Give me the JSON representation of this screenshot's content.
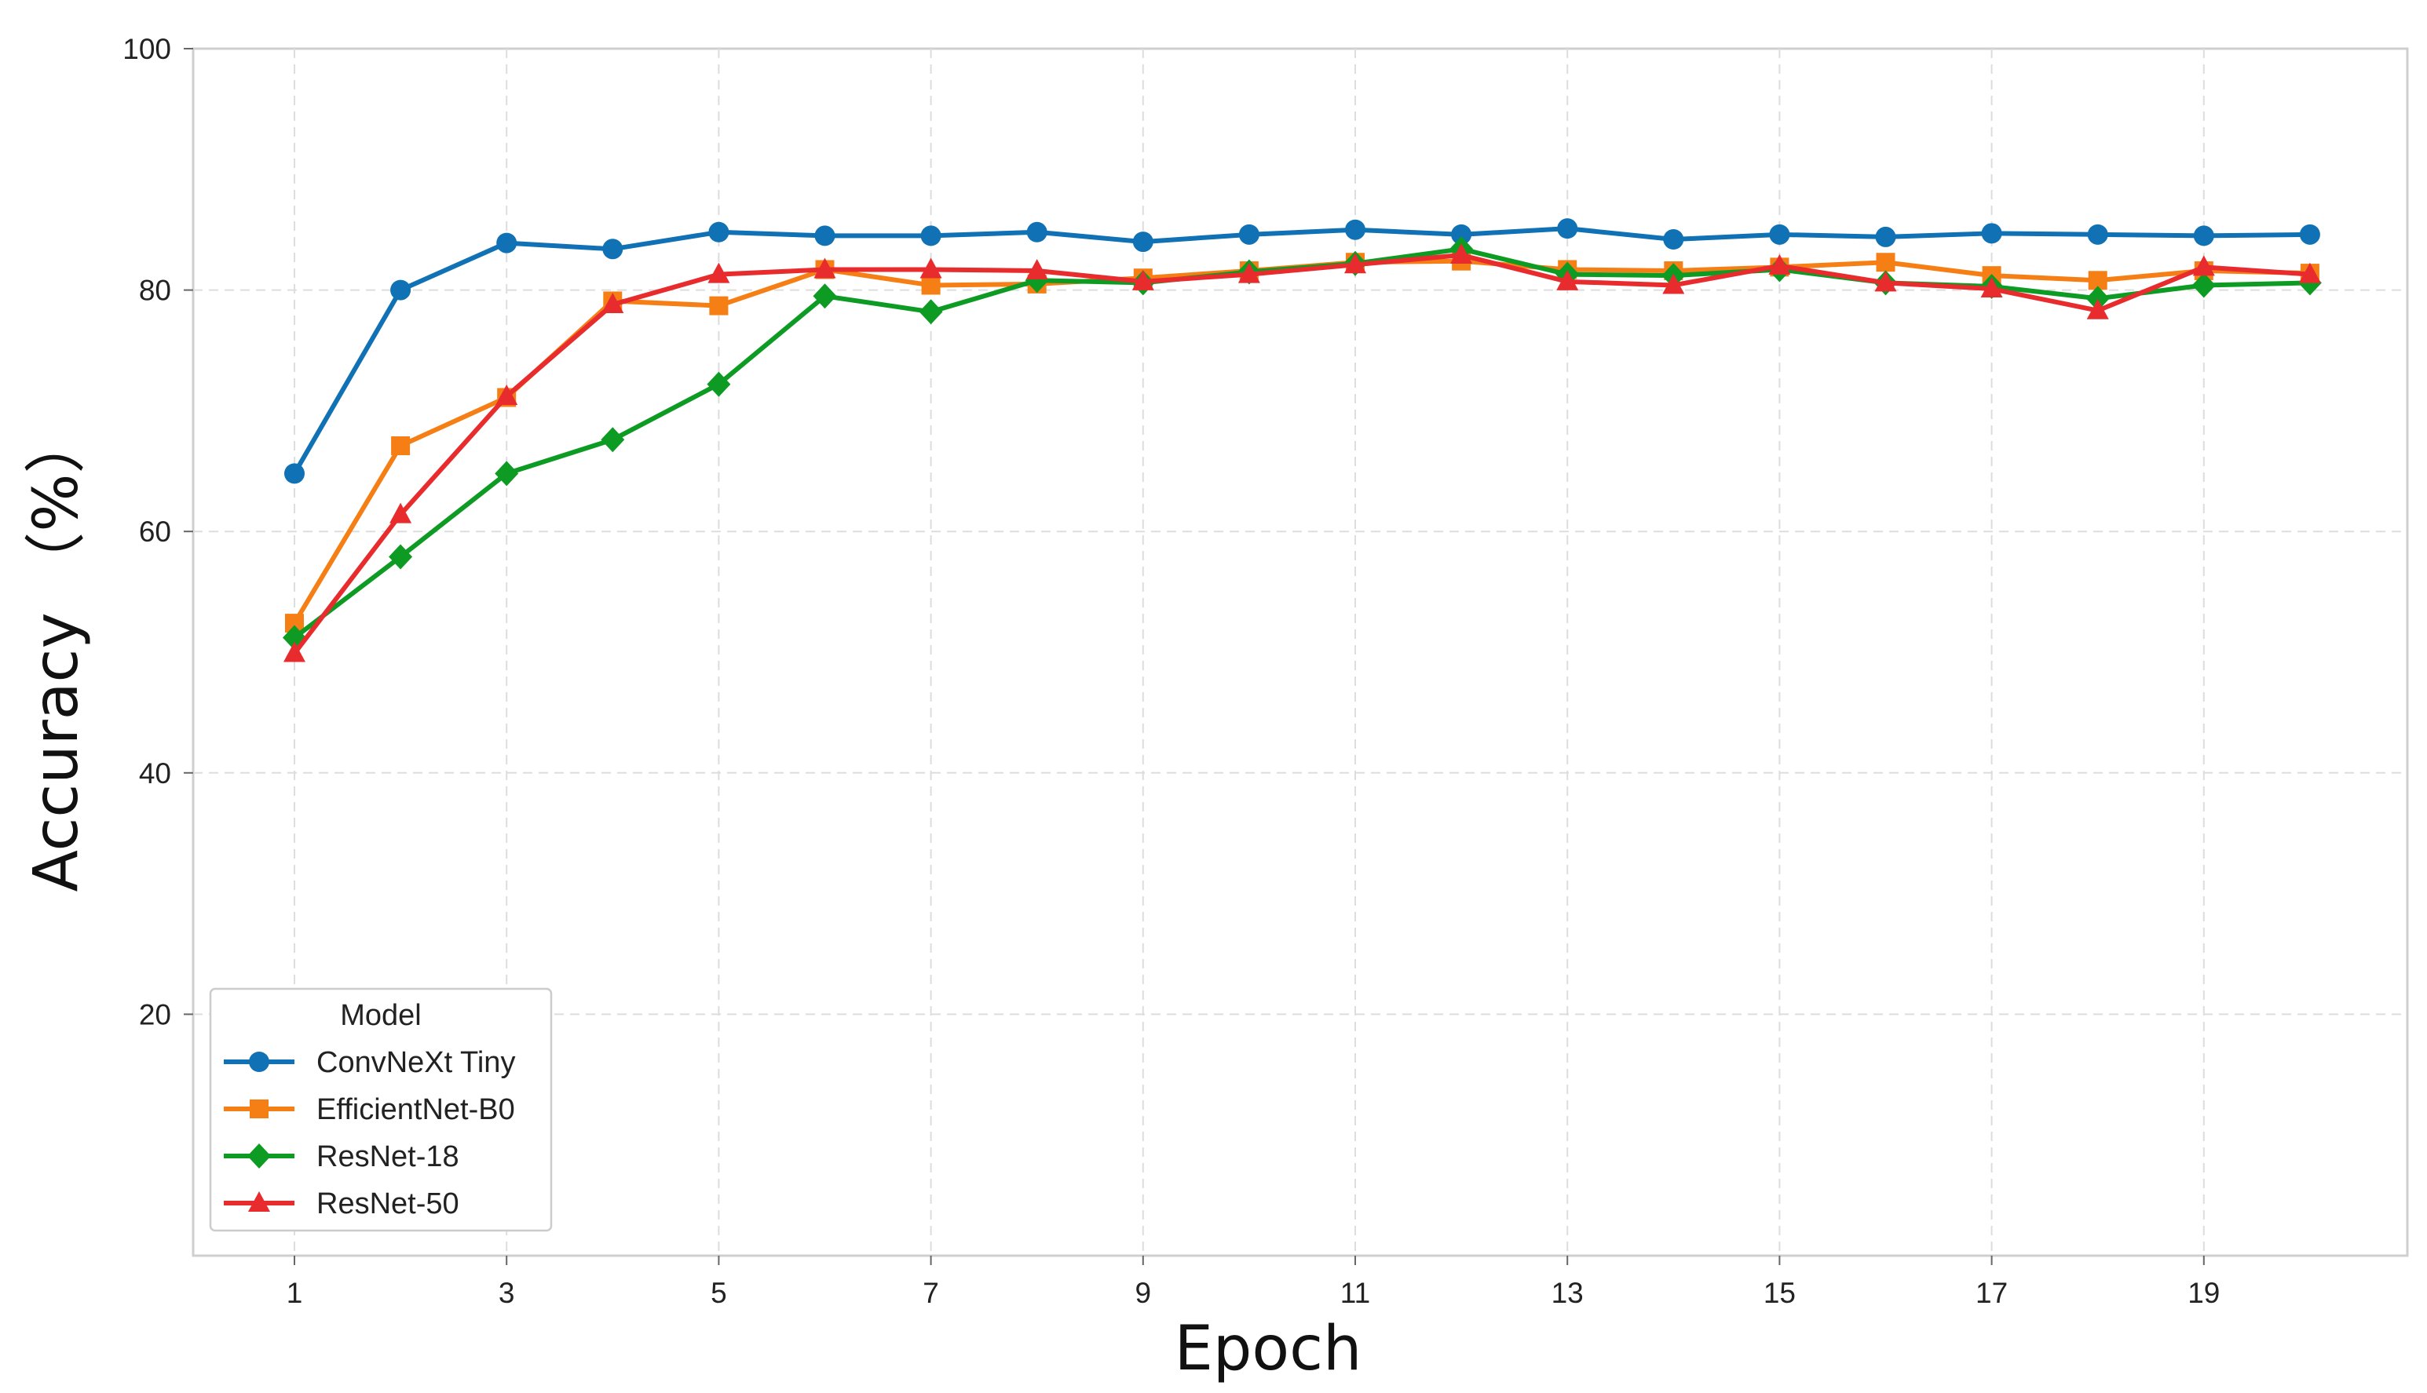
{
  "chart_data": {
    "type": "line",
    "xlabel": "Epoch",
    "ylabel": "Accuracy （%）",
    "xlim": [
      0.0,
      21.5
    ],
    "ylim": [
      0,
      100
    ],
    "xticks": [
      1,
      3,
      5,
      7,
      9,
      11,
      13,
      15,
      17,
      19
    ],
    "yticks": [
      20,
      40,
      60,
      80,
      100
    ],
    "grid": true,
    "legend": {
      "title": "Model",
      "placement": "bottom-left"
    },
    "x": [
      1,
      2,
      3,
      4,
      5,
      6,
      7,
      8,
      9,
      10,
      11,
      12,
      13,
      14,
      15,
      16,
      17,
      18,
      19,
      20
    ],
    "series": [
      {
        "name": "ConvNeXt Tiny",
        "color": "#1071b4",
        "marker": "circle",
        "values": [
          64.8,
          80.0,
          83.9,
          83.4,
          84.8,
          84.5,
          84.5,
          84.8,
          84.0,
          84.6,
          85.0,
          84.6,
          85.1,
          84.2,
          84.6,
          84.4,
          84.7,
          84.6,
          84.5,
          84.6
        ]
      },
      {
        "name": "EfficientNet-B0",
        "color": "#f57f15",
        "marker": "square",
        "values": [
          52.4,
          67.1,
          71.1,
          79.1,
          78.7,
          81.7,
          80.4,
          80.5,
          81.0,
          81.6,
          82.3,
          82.4,
          81.7,
          81.6,
          81.9,
          82.3,
          81.2,
          80.8,
          81.6,
          81.4
        ]
      },
      {
        "name": "ResNet-18",
        "color": "#0e9b24",
        "marker": "diamond",
        "values": [
          51.2,
          57.9,
          64.8,
          67.6,
          72.2,
          79.5,
          78.2,
          80.8,
          80.6,
          81.5,
          82.2,
          83.4,
          81.3,
          81.2,
          81.7,
          80.6,
          80.3,
          79.3,
          80.4,
          80.6
        ]
      },
      {
        "name": "ResNet-50",
        "color": "#e82c2d",
        "marker": "triangle",
        "values": [
          49.9,
          61.4,
          71.2,
          78.8,
          81.3,
          81.7,
          81.7,
          81.6,
          80.7,
          81.3,
          82.1,
          82.9,
          80.7,
          80.4,
          82.0,
          80.6,
          80.1,
          78.3,
          81.9,
          81.3
        ]
      }
    ]
  }
}
